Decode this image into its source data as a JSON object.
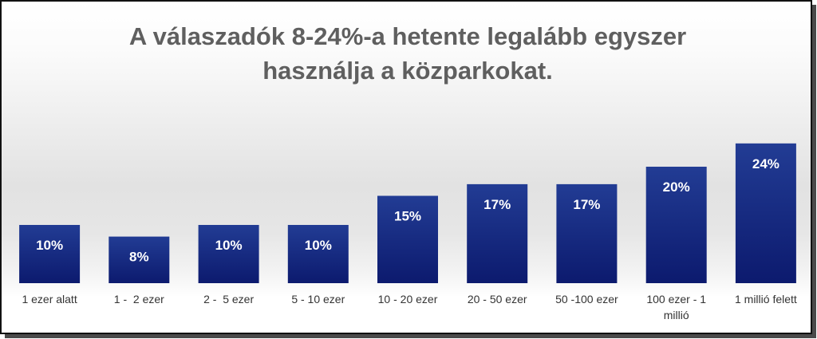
{
  "chart_data": {
    "type": "bar",
    "title_lines": [
      "A válaszadók 8-24%-a hetente legalább egyszer",
      "használja a közparkokat."
    ],
    "categories": [
      [
        "1 ezer alatt"
      ],
      [
        "1 -  2 ezer"
      ],
      [
        "2 -  5 ezer"
      ],
      [
        "5 - 10 ezer"
      ],
      [
        "10 - 20 ezer"
      ],
      [
        "20 - 50 ezer"
      ],
      [
        "50 -100 ezer"
      ],
      [
        "100 ezer - 1",
        "millió"
      ],
      [
        "1 millió felett"
      ]
    ],
    "values": [
      10,
      8,
      10,
      10,
      15,
      17,
      17,
      20,
      24
    ],
    "value_labels": [
      "10%",
      "8%",
      "10%",
      "10%",
      "15%",
      "17%",
      "17%",
      "20%",
      "24%"
    ],
    "ylim": [
      0,
      26
    ],
    "grid": false,
    "legend": "none",
    "colors": {
      "bar_top": "#223c94",
      "bar_bottom": "#0c1a6e",
      "title": "#5f5f5f"
    }
  }
}
